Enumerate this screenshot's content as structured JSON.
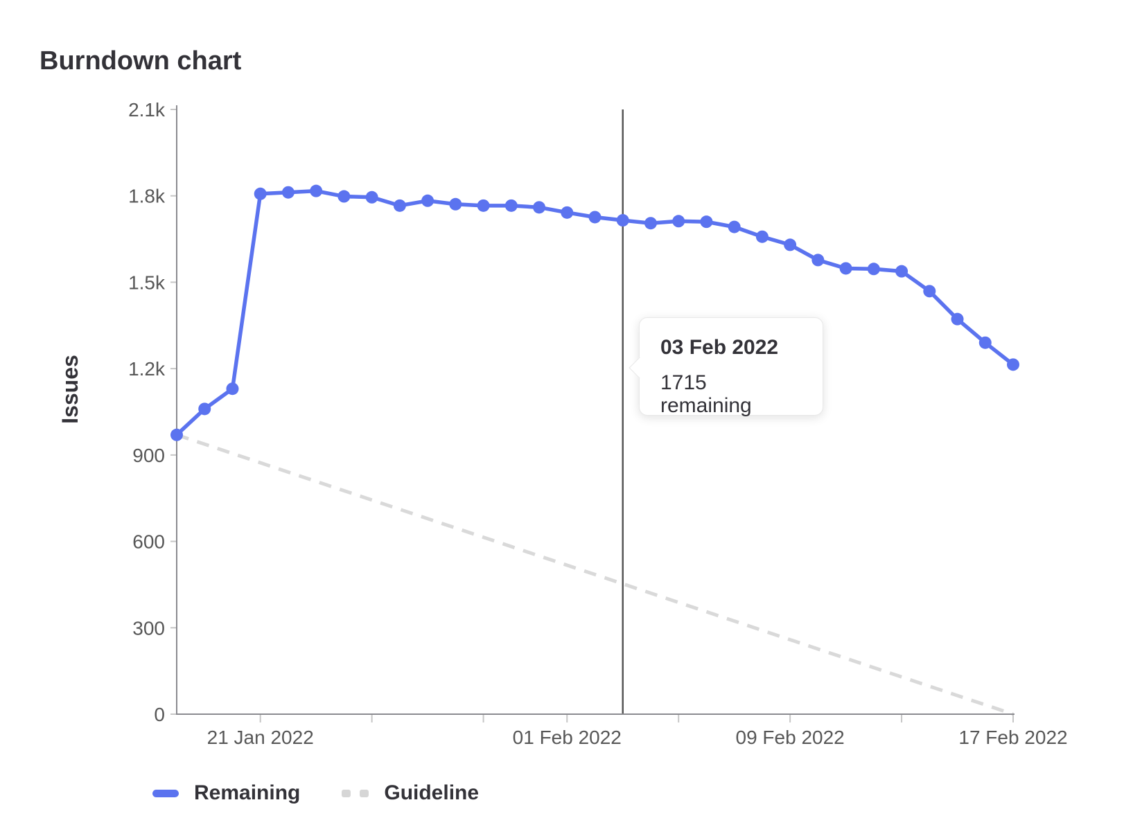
{
  "page_title": "Burndown chart",
  "chart_data": {
    "type": "line",
    "title": "Burndown chart",
    "ylabel": "Issues",
    "xlabel": "",
    "ylim": [
      0,
      2100
    ],
    "grid": false,
    "legend_position": "bottom-left",
    "y_ticks": [
      {
        "value": 0,
        "label": "0"
      },
      {
        "value": 300,
        "label": "300"
      },
      {
        "value": 600,
        "label": "600"
      },
      {
        "value": 900,
        "label": "900"
      },
      {
        "value": 1200,
        "label": "1.2k"
      },
      {
        "value": 1500,
        "label": "1.5k"
      },
      {
        "value": 1800,
        "label": "1.8k"
      },
      {
        "value": 2100,
        "label": "2.1k"
      }
    ],
    "x": [
      "18 Jan 2022",
      "19 Jan 2022",
      "20 Jan 2022",
      "21 Jan 2022",
      "22 Jan 2022",
      "23 Jan 2022",
      "24 Jan 2022",
      "25 Jan 2022",
      "26 Jan 2022",
      "27 Jan 2022",
      "28 Jan 2022",
      "29 Jan 2022",
      "30 Jan 2022",
      "31 Jan 2022",
      "01 Feb 2022",
      "02 Feb 2022",
      "03 Feb 2022",
      "04 Feb 2022",
      "05 Feb 2022",
      "06 Feb 2022",
      "07 Feb 2022",
      "08 Feb 2022",
      "09 Feb 2022",
      "10 Feb 2022",
      "11 Feb 2022",
      "12 Feb 2022",
      "13 Feb 2022",
      "14 Feb 2022",
      "15 Feb 2022",
      "16 Feb 2022",
      "17 Feb 2022"
    ],
    "x_tick_indices": [
      3,
      7,
      11,
      14,
      18,
      22,
      26,
      30
    ],
    "x_axis_labels": [
      {
        "index": 3,
        "label": "21 Jan 2022"
      },
      {
        "index": 14,
        "label": "01 Feb 2022"
      },
      {
        "index": 22,
        "label": "09 Feb 2022"
      },
      {
        "index": 30,
        "label": "17 Feb 2022"
      }
    ],
    "series": [
      {
        "name": "Remaining",
        "style": "solid",
        "color": "#5b73ef",
        "values": [
          970,
          1060,
          1130,
          1807,
          1812,
          1817,
          1798,
          1795,
          1766,
          1783,
          1771,
          1766,
          1766,
          1760,
          1742,
          1726,
          1715,
          1705,
          1712,
          1710,
          1692,
          1658,
          1630,
          1577,
          1548,
          1546,
          1538,
          1469,
          1372,
          1290,
          1214
        ]
      },
      {
        "name": "Guideline",
        "style": "dashed",
        "color": "#d9d9d9",
        "start_value": 970,
        "end_value": 0
      }
    ],
    "hover": {
      "index": 16
    }
  },
  "tooltip": {
    "date": "03 Feb 2022",
    "value_text": "1715 remaining"
  },
  "legend": {
    "items": [
      {
        "label": "Remaining",
        "style": "solid",
        "color": "#5b73ef"
      },
      {
        "label": "Guideline",
        "style": "dashed",
        "color": "#d6d6d6"
      }
    ]
  },
  "colors": {
    "accent_blue": "#5b73ef",
    "guideline_gray": "#d9d9d9",
    "axis_line": "#8a8a8f",
    "tick_mark": "#c6c6c6",
    "tick_text": "#575757",
    "text_dark": "#333238",
    "hover_line": "#555555",
    "tooltip_bg": "#ffffff"
  }
}
